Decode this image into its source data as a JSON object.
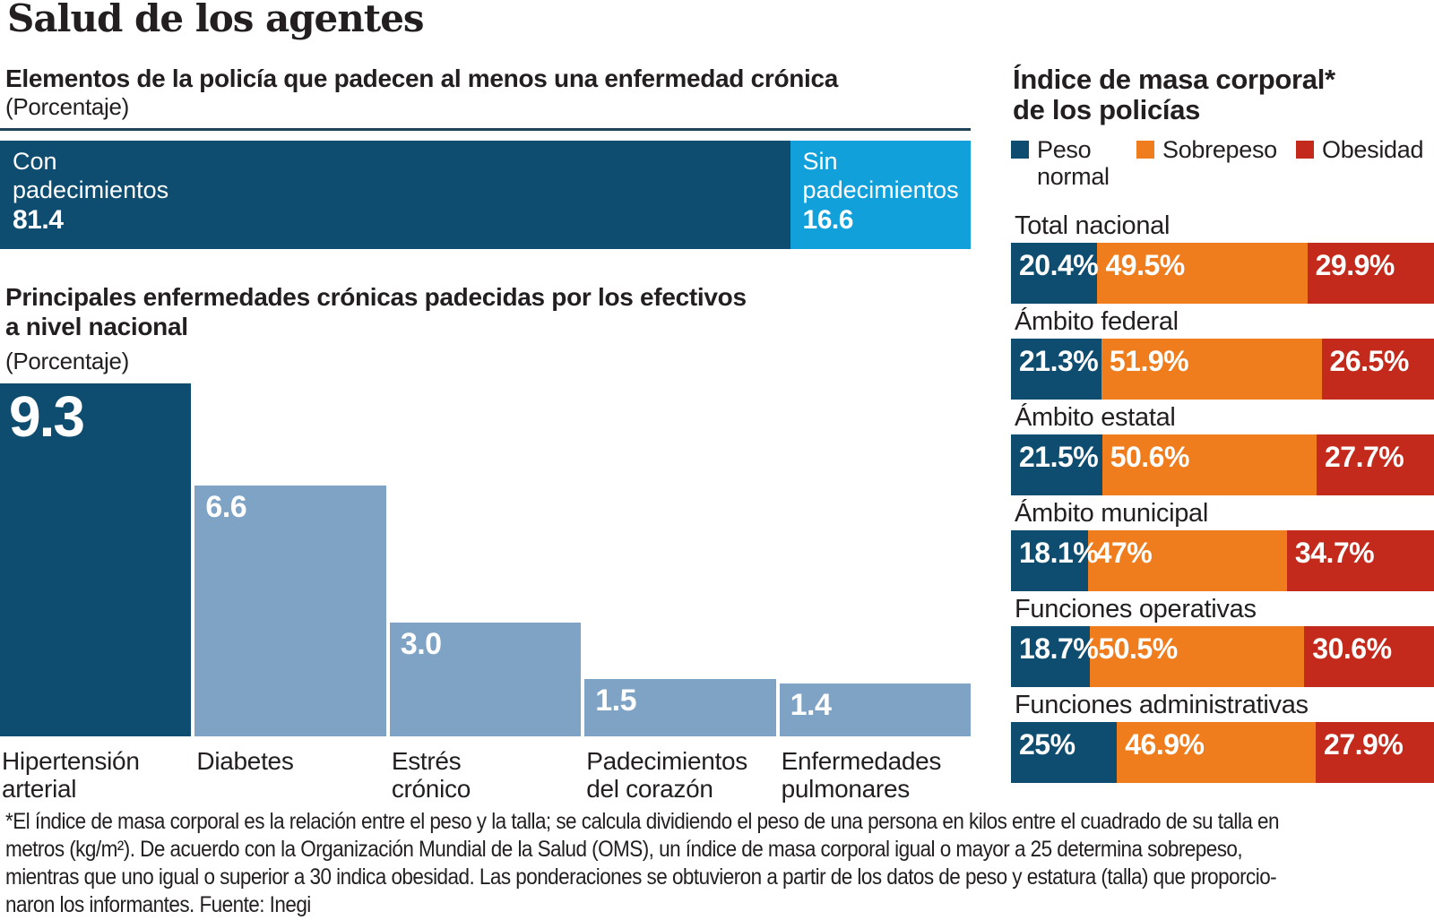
{
  "title": "Salud de los agentes",
  "colors": {
    "navy": "#0E4C70",
    "lightblue": "#12A0DB",
    "steel": "#7EA3C4",
    "orange": "#EF7D1E",
    "red": "#C32A1C",
    "text": "#231F20",
    "rule": "#1F4257"
  },
  "chart_data": [
    {
      "type": "bar",
      "variant": "horizontal-stacked",
      "title": "Elementos de la policía que padecen al menos una enfermedad crónica",
      "unit_label": "(Porcentaje)",
      "xlim": [
        0,
        100
      ],
      "segments": [
        {
          "name": "Con padecimientos",
          "name_lines": [
            "Con",
            "padecimientos"
          ],
          "value": 81.4,
          "display": "81.4",
          "color": "#0E4C70"
        },
        {
          "name": "Sin padecimientos",
          "name_lines": [
            "Sin",
            "padecimientos"
          ],
          "value": 16.6,
          "display": "16.6",
          "color": "#12A0DB"
        }
      ]
    },
    {
      "type": "bar",
      "variant": "vertical",
      "title": "Principales enfermedades crónicas padecidas por los efectivos a nivel nacional",
      "title_lines": [
        "Principales enfermedades crónicas padecidas por los efectivos",
        "a nivel nacional"
      ],
      "unit_label": "(Porcentaje)",
      "categories": [
        "Hipertensión arterial",
        "Diabetes",
        "Estrés crónico",
        "Padecimientos del corazón",
        "Enfermedades pulmonares"
      ],
      "label_lines": [
        [
          "Hipertensión",
          "arterial"
        ],
        [
          "Diabetes"
        ],
        [
          "Estrés",
          "crónico"
        ],
        [
          "Padecimientos",
          "del corazón"
        ],
        [
          "Enfermedades",
          "pulmonares"
        ]
      ],
      "values": [
        9.3,
        6.6,
        3.0,
        1.5,
        1.4
      ],
      "displays": [
        "9.3",
        "6.6",
        "3.0",
        "1.5",
        "1.4"
      ],
      "ylim": [
        0,
        9.3
      ],
      "bar_colors": [
        "#0E4C70",
        "#7EA3C4",
        "#7EA3C4",
        "#7EA3C4",
        "#7EA3C4"
      ],
      "grid": false
    },
    {
      "type": "bar",
      "variant": "horizontal-stacked-multi",
      "title": "Índice de masa corporal* de los policías",
      "title_lines": [
        "Índice de masa corporal*",
        "de los policías"
      ],
      "legend": [
        "Peso normal",
        "Sobrepeso",
        "Obesidad"
      ],
      "legend_position": "top",
      "categories": [
        "Total nacional",
        "Ámbito federal",
        "Ámbito estatal",
        "Ámbito municipal",
        "Funciones operativas",
        "Funciones administrativas"
      ],
      "series": [
        {
          "name": "Peso normal",
          "color": "#0E4C70",
          "values": [
            20.4,
            21.3,
            21.5,
            18.1,
            18.7,
            25
          ]
        },
        {
          "name": "Sobrepeso",
          "color": "#EF7D1E",
          "values": [
            49.5,
            51.9,
            50.6,
            47,
            50.5,
            46.9
          ]
        },
        {
          "name": "Obesidad",
          "color": "#C32A1C",
          "values": [
            29.9,
            26.5,
            27.7,
            34.7,
            30.6,
            27.9
          ]
        }
      ],
      "labels": [
        [
          "20.4%",
          "49.5%",
          "29.9%"
        ],
        [
          "21.3%",
          "51.9%",
          "26.5%"
        ],
        [
          "21.5%",
          "50.6%",
          "27.7%"
        ],
        [
          "18.1%",
          "47%",
          "34.7%"
        ],
        [
          "18.7%",
          "50.5%",
          "30.6%"
        ],
        [
          "25%",
          "46.9%",
          "27.9%"
        ]
      ]
    }
  ],
  "footnote_lines": [
    "*El índice de masa corporal es la relación entre el peso y la talla; se calcula dividiendo el peso de una persona en kilos entre el cuadrado de su talla en",
    "metros (kg/m²). De acuerdo con la Organización Mundial de la Salud (OMS), un índice de masa corporal igual o mayor a 25 determina sobrepeso,",
    "mientras que uno igual o superior a 30 indica obesidad. Las ponderaciones se obtuvieron a partir de los datos de peso y estatura (talla) que proporcio-",
    "naron los informantes. Fuente: Inegi"
  ]
}
